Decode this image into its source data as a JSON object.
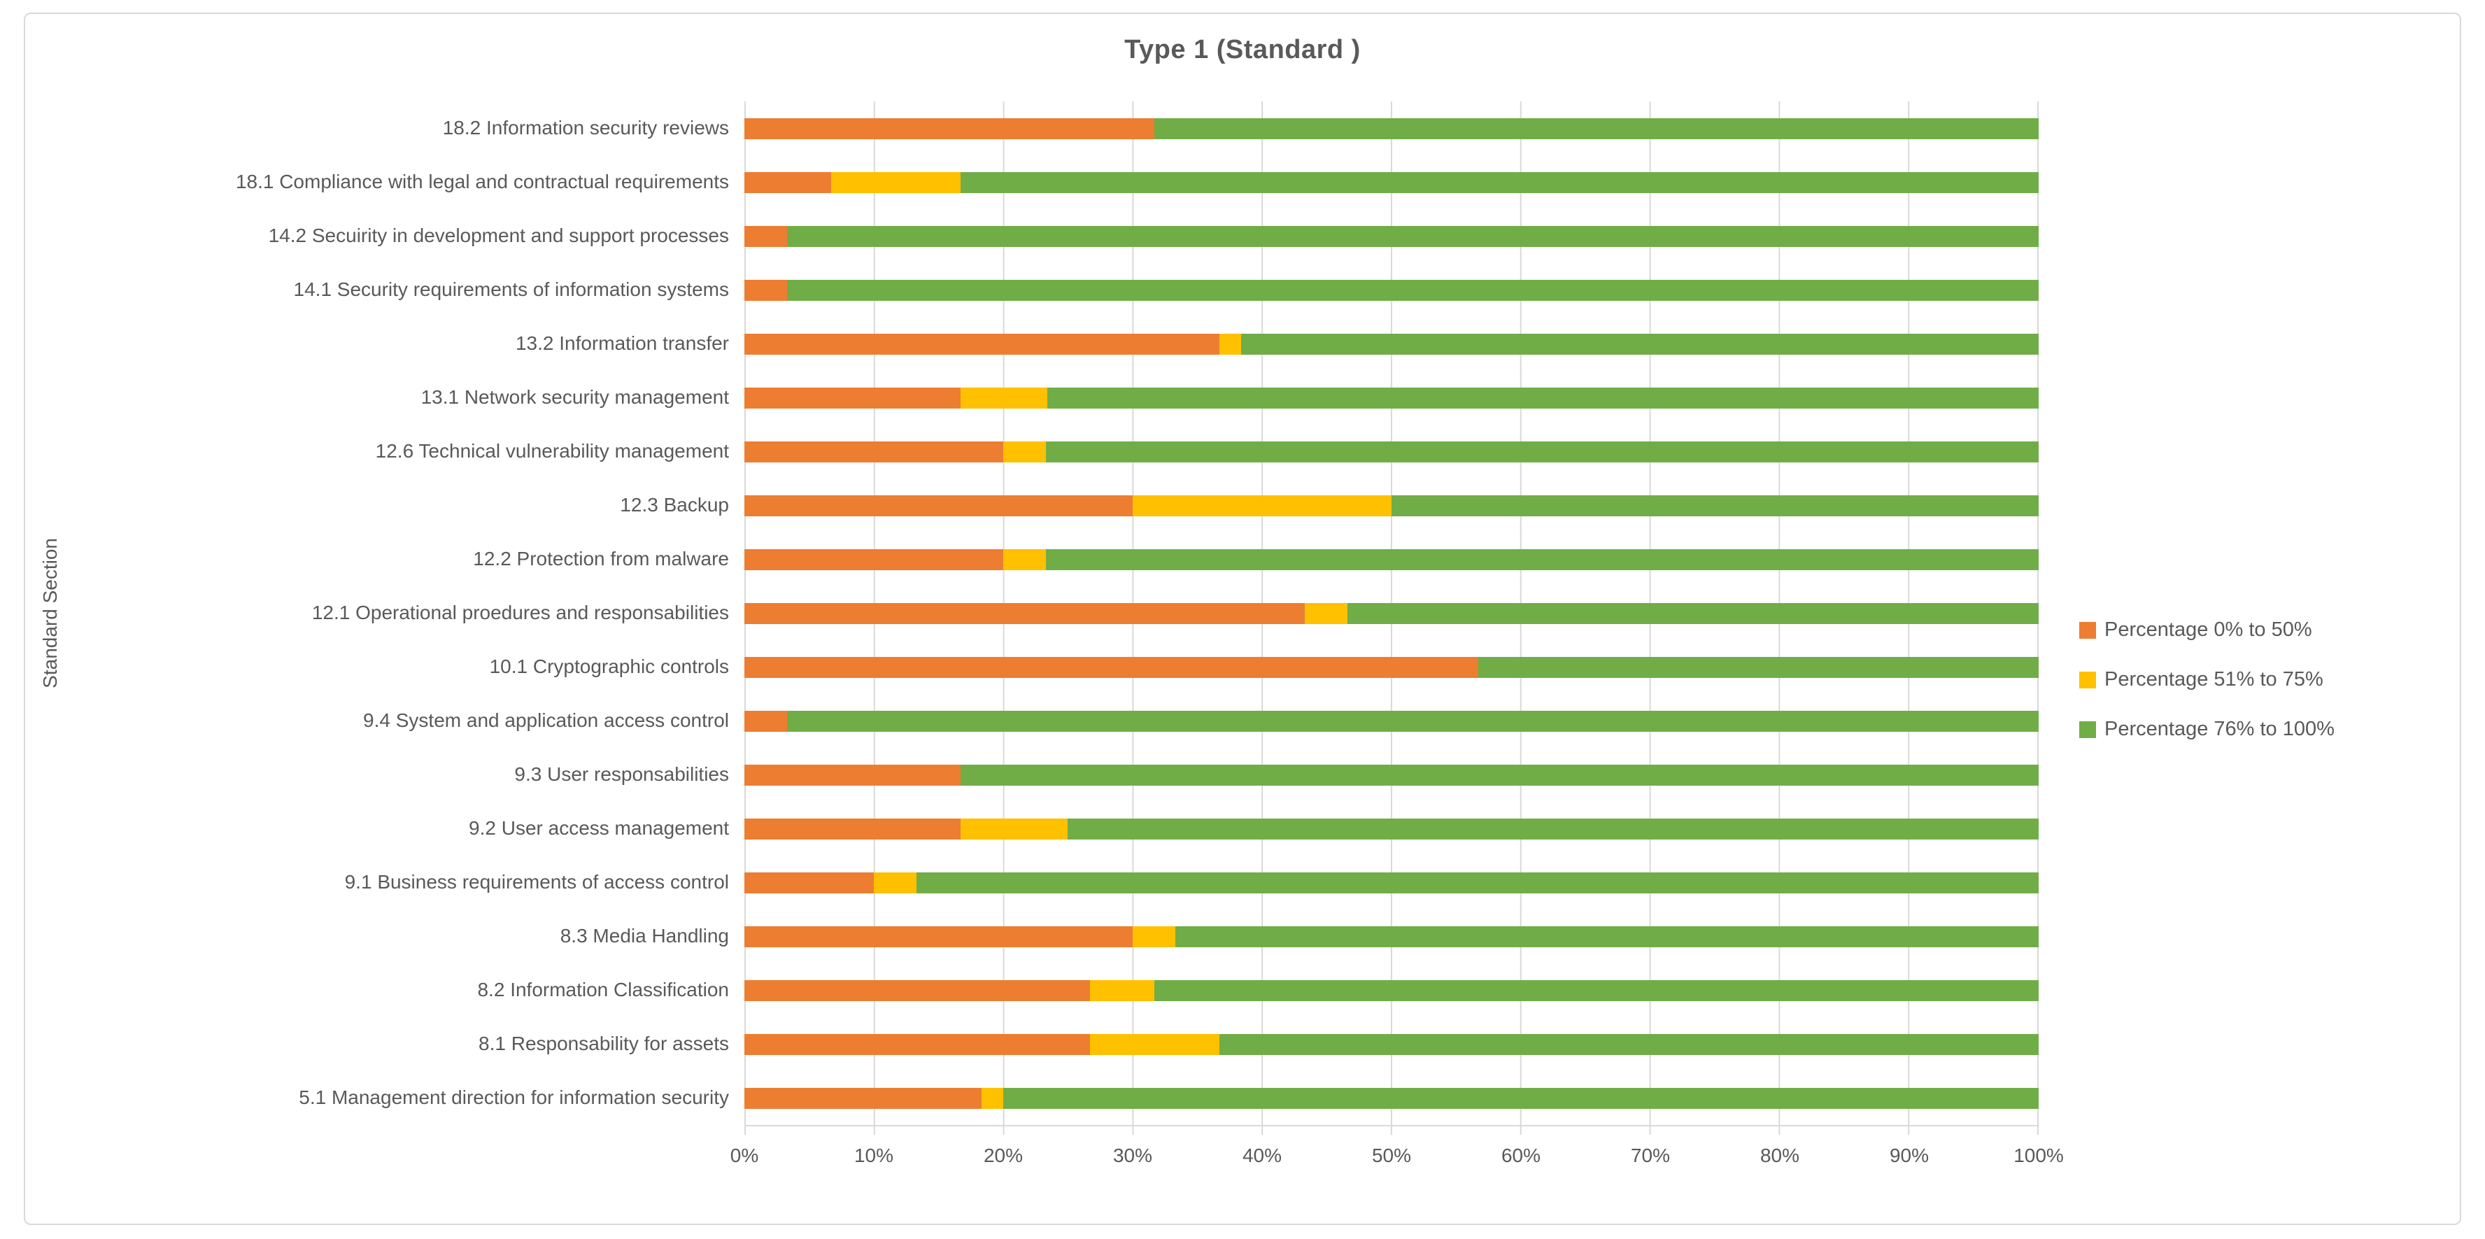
{
  "chart_data": {
    "type": "bar",
    "orientation": "horizontal",
    "stacked": true,
    "title": "Type 1 (Standard )",
    "xlabel": "",
    "ylabel": "Standard Section",
    "xlim": [
      0,
      100
    ],
    "x_tick_labels": [
      "0%",
      "10%",
      "20%",
      "30%",
      "40%",
      "50%",
      "60%",
      "70%",
      "80%",
      "90%",
      "100%"
    ],
    "grid": true,
    "legend_position": "right",
    "categories": [
      "18.2 Information security reviews",
      "18.1 Compliance with legal and contractual requirements",
      "14.2 Secuirity in development and support processes",
      "14.1 Security requirements of information systems",
      "13.2 Information transfer",
      "13.1 Network security management",
      "12.6 Technical vulnerability management",
      "12.3 Backup",
      "12.2 Protection from malware",
      "12.1 Operational proedures and responsabilities",
      "10.1 Cryptographic controls",
      "9.4 System and application access control",
      "9.3 User responsabilities",
      "9.2 User access management",
      "9.1 Business requirements of access control",
      "8.3 Media Handling",
      "8.2 Information Classification",
      "8.1 Responsability for assets",
      "5.1 Management direction for information security"
    ],
    "series": [
      {
        "name": "Percentage 0% to 50%",
        "color": "#ED7D31",
        "values": [
          31.7,
          6.7,
          3.3,
          3.3,
          36.7,
          16.7,
          20.0,
          30.0,
          20.0,
          43.3,
          56.7,
          3.3,
          16.7,
          16.7,
          10.0,
          30.0,
          26.7,
          26.7,
          18.3
        ]
      },
      {
        "name": "Percentage 51% to 75%",
        "color": "#FFC000",
        "values": [
          0.0,
          10.0,
          0.0,
          0.0,
          1.7,
          6.7,
          3.3,
          20.0,
          3.3,
          3.3,
          0.0,
          0.0,
          0.0,
          8.3,
          3.3,
          3.3,
          5.0,
          10.0,
          1.7
        ]
      },
      {
        "name": "Percentage 76% to 100%",
        "color": "#70AD47",
        "values": [
          68.3,
          83.3,
          96.7,
          96.7,
          61.6,
          76.6,
          76.7,
          50.0,
          76.7,
          53.4,
          43.3,
          96.7,
          83.3,
          75.0,
          86.7,
          66.7,
          68.3,
          63.3,
          80.0
        ]
      }
    ],
    "colors": {
      "text": "#595959",
      "gridline": "#D9D9D9",
      "border": "#D9D9D9"
    }
  }
}
